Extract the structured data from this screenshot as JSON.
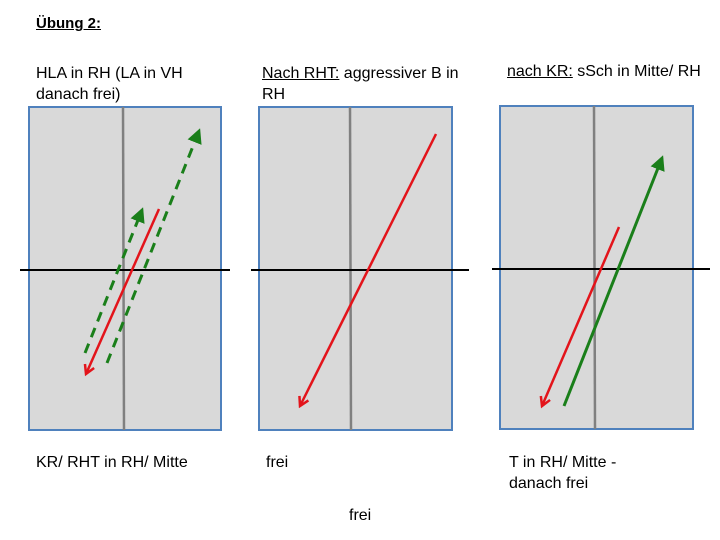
{
  "title": "Übung 2:",
  "panels": [
    {
      "heading_underlined": "",
      "heading_rest": "HLA in RH (LA in VH danach frei)",
      "caption": "KR/ RHT in RH/ Mitte"
    },
    {
      "heading_underlined": "Nach RHT:",
      "heading_rest": " aggressiver B in RH",
      "caption": "frei"
    },
    {
      "heading_underlined": "nach KR:",
      "heading_rest": " sSch in Mitte/ RH",
      "caption": "T in RH/ Mitte - danach frei"
    }
  ],
  "bottom_caption": "frei",
  "colors": {
    "field_fill": "#d9d9d9",
    "field_border": "#4f81bd",
    "center_line": "#808080",
    "mid_line": "#000000",
    "red_arrow": "#e3141b",
    "green_arrow": "#1a7f1a"
  },
  "arrow_legend": {
    "red_solid": "red-solid-arrow",
    "green_solid": "green-solid-arrow",
    "green_dashed": "green-dashed-arrow"
  }
}
